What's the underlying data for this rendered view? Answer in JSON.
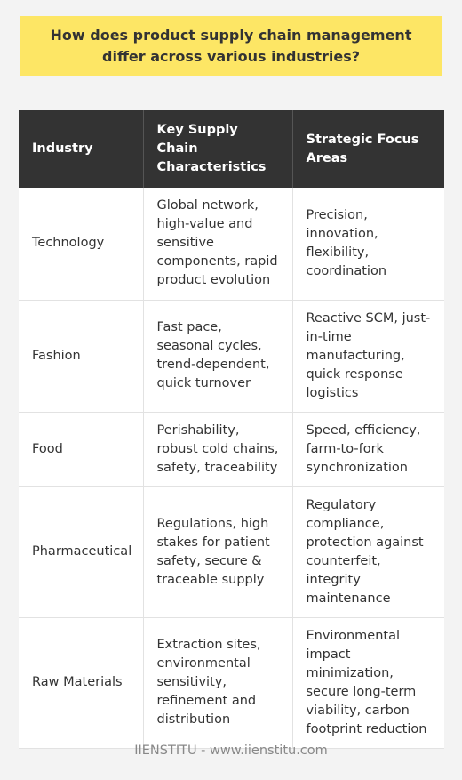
{
  "title": "How does product supply chain management differ across various industries?",
  "table": {
    "headers": [
      "Industry",
      "Key Supply Chain Characteristics",
      "Strategic Focus Areas"
    ],
    "rows": [
      [
        "Technology",
        "Global network, high-value and sensitive components, rapid product evolution",
        "Precision, innovation, flexibility, coordination"
      ],
      [
        "Fashion",
        "Fast pace, seasonal cycles, trend-dependent, quick turnover",
        "Reactive SCM, just-in-time manufacturing, quick response logistics"
      ],
      [
        "Food",
        "Perishability, robust cold chains, safety, traceability",
        "Speed, efficiency, farm-to-fork synchronization"
      ],
      [
        "Pharmaceutical",
        "Regulations, high stakes for patient safety, secure & traceable supply",
        "Regulatory compliance, protection against counterfeit, integrity maintenance"
      ],
      [
        "Raw Materials",
        "Extraction sites, environmental sensitivity, refinement and distribution",
        "Environmental impact minimization, secure long-term viability, carbon footprint reduction"
      ]
    ]
  },
  "footer": "IIENSTITU - www.iienstitu.com"
}
